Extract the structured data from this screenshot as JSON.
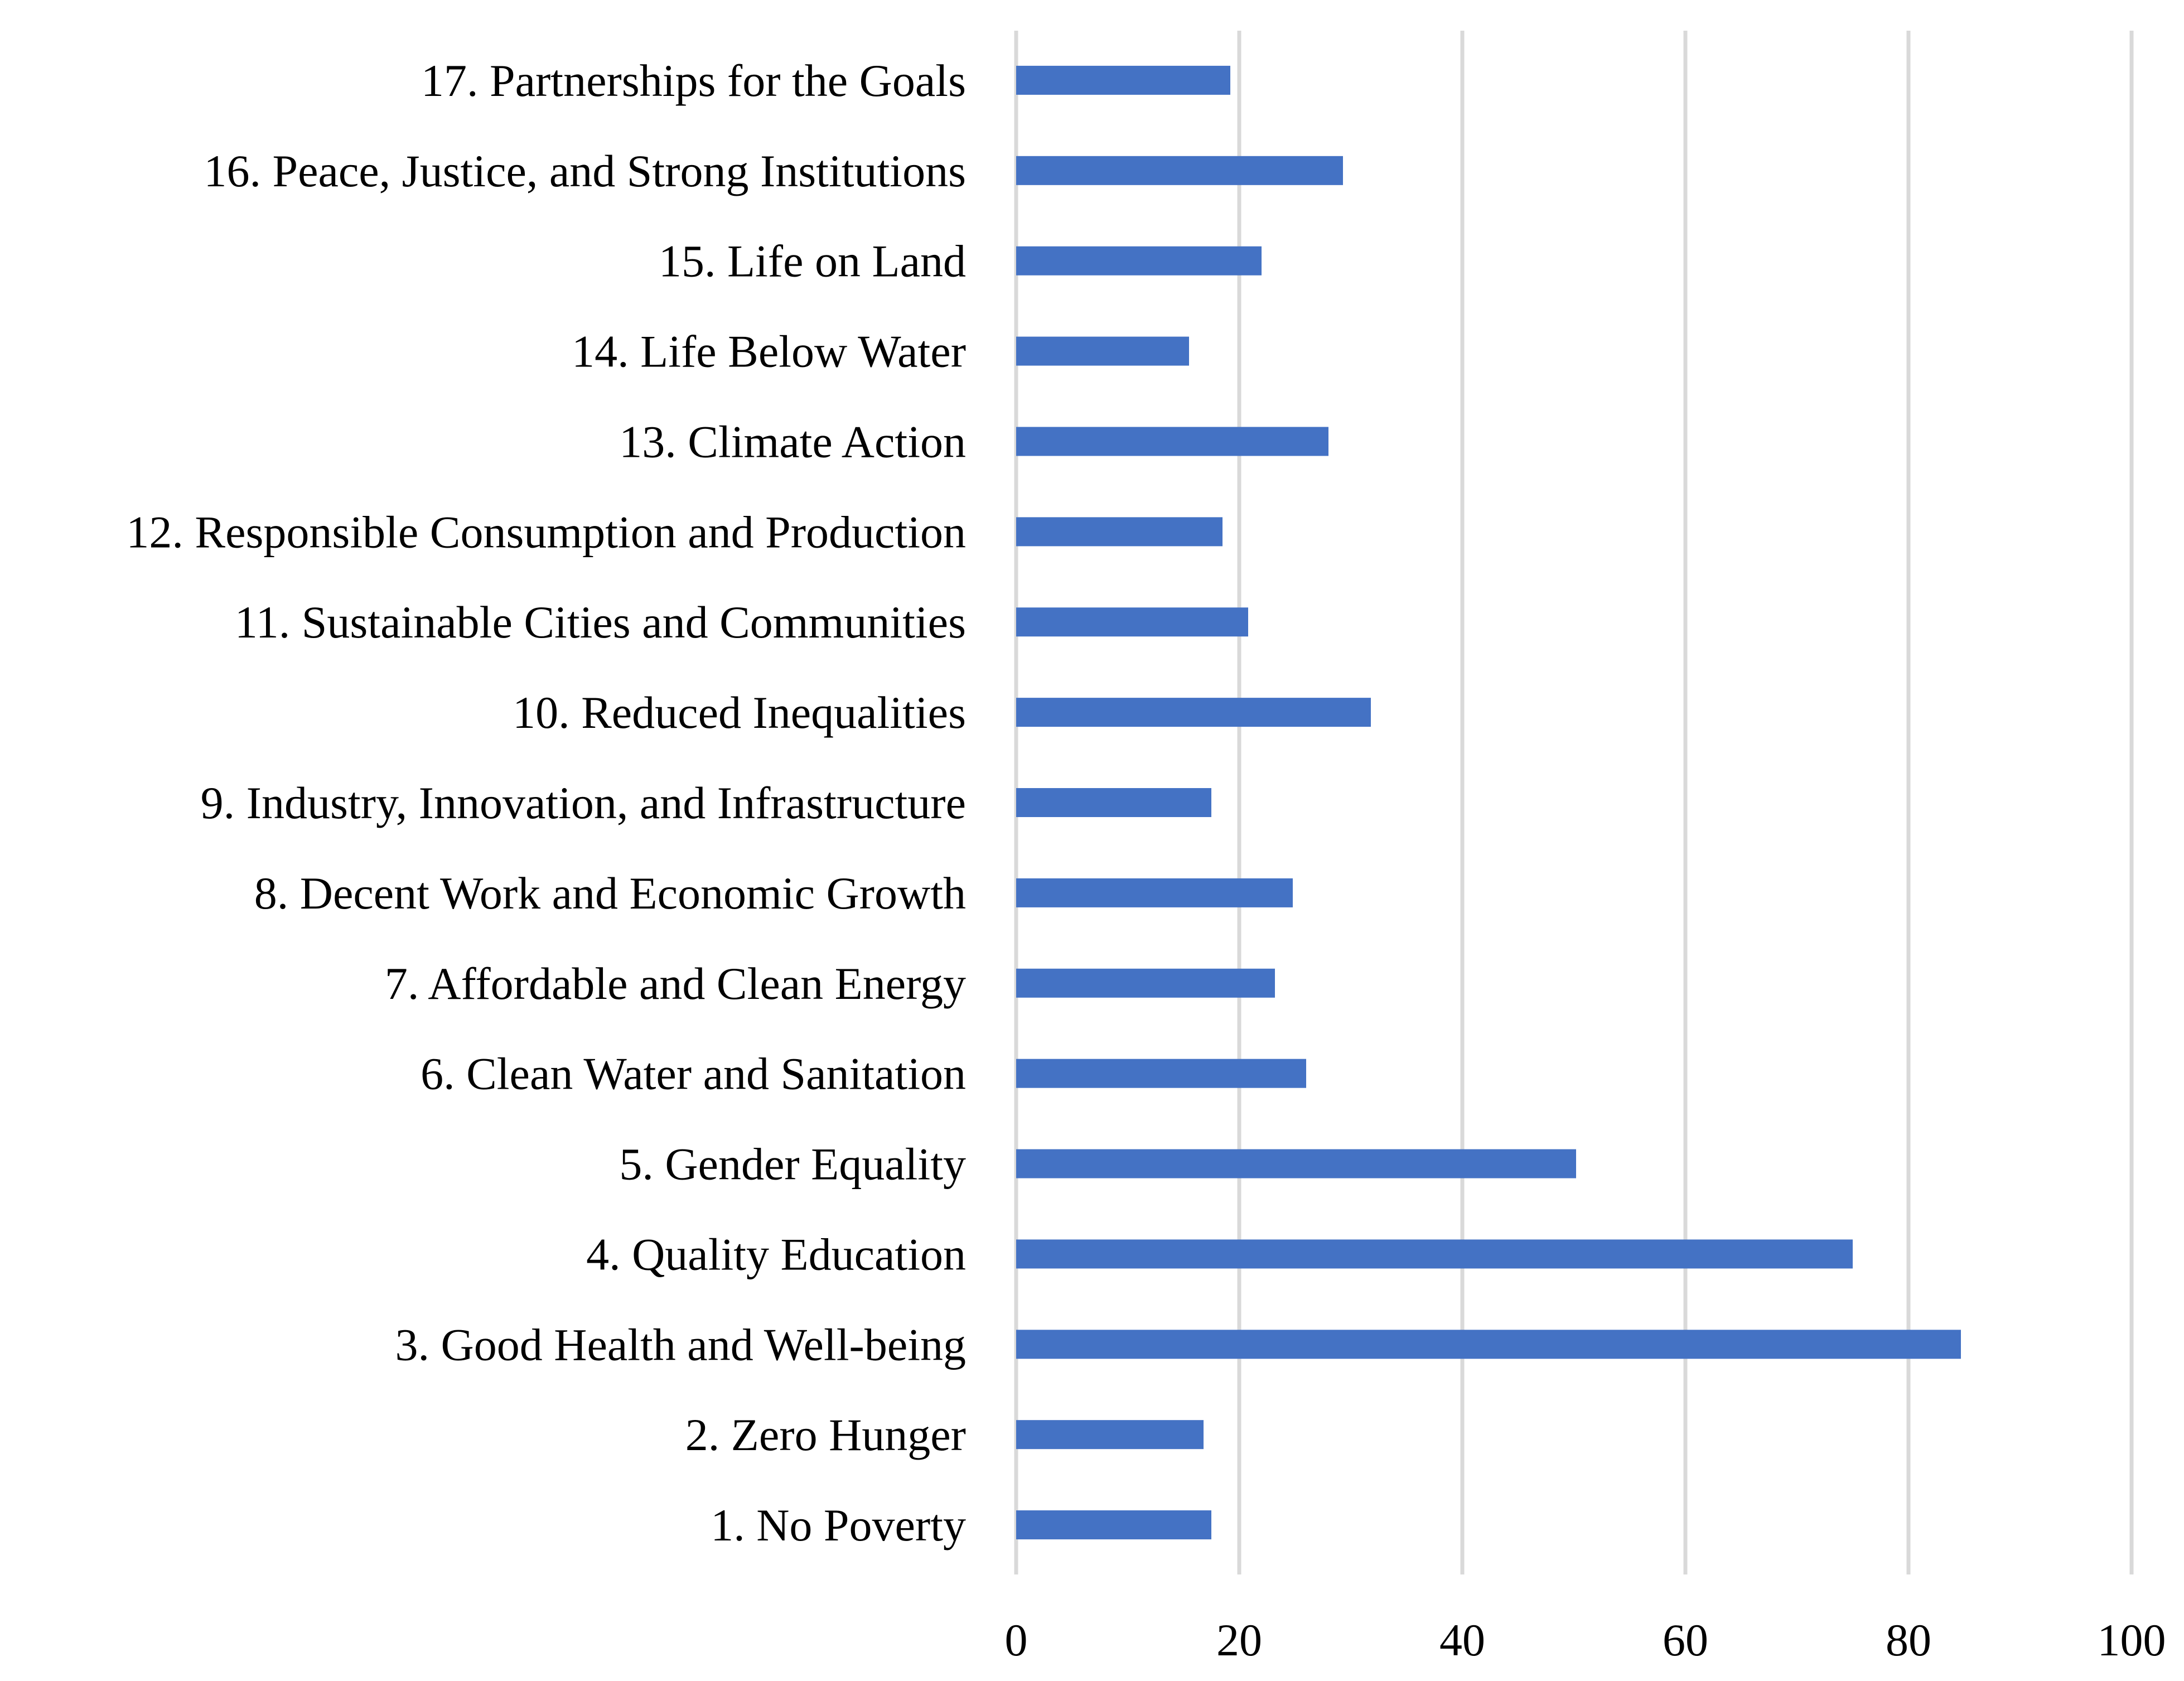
{
  "chart_data": {
    "type": "bar",
    "orientation": "horizontal",
    "title": "",
    "xlabel": "",
    "ylabel": "",
    "xlim": [
      0,
      100
    ],
    "x_ticks": [
      0,
      20,
      40,
      60,
      80,
      100
    ],
    "grid": true,
    "legend": "none",
    "bar_color": "#4472C4",
    "gridline_color": "#D9D9D9",
    "categories": [
      "1. No Poverty",
      "2. Zero Hunger",
      "3. Good Health and Well-being",
      "4. Quality Education",
      "5. Gender Equality",
      "6. Clean Water and Sanitation",
      "7. Affordable and Clean Energy",
      "8. Decent Work and Economic Growth",
      "9. Industry, Innovation, and Infrastructure",
      "10. Reduced Inequalities",
      "11. Sustainable Cities and Communities",
      "12. Responsible Consumption and Production",
      "13. Climate Action",
      "14. Life Below Water",
      "15. Life on Land",
      "16. Peace, Justice, and Strong Institutions",
      "17. Partnerships for the Goals"
    ],
    "values": [
      17.5,
      16.8,
      84.7,
      75,
      50.2,
      26,
      23.2,
      24.8,
      17.5,
      31.8,
      20.8,
      18.5,
      28,
      15.5,
      22,
      29.3,
      19.2
    ]
  }
}
